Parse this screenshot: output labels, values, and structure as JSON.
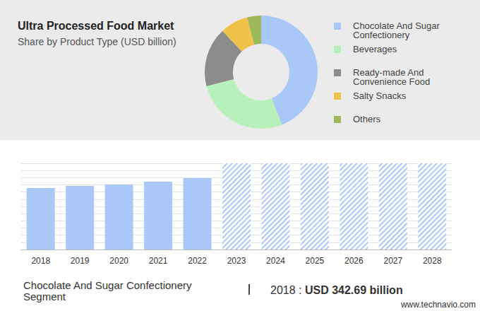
{
  "title": "Ultra Processed Food Market",
  "subtitle": "Share by Product Type (USD billion)",
  "chart_data": [
    {
      "type": "pie",
      "categories": [
        "Chocolate And Sugar Confectionery",
        "Beverages",
        "Ready-made And Convenience Food",
        "Salty Snacks",
        "Others"
      ],
      "values": [
        44,
        27,
        17,
        8,
        4
      ],
      "colors": [
        "#a9c8f8",
        "#b8f0bc",
        "#8c8c8c",
        "#f0c24a",
        "#9cb85a"
      ],
      "legend": "right"
    },
    {
      "type": "bar",
      "categories": [
        "2018",
        "2019",
        "2020",
        "2021",
        "2022",
        "2023",
        "2024",
        "2025",
        "2026",
        "2027",
        "2028"
      ],
      "series": [
        {
          "color": "#a9c8f8",
          "values": [
            342.69,
            354,
            362,
            378,
            397,
            null,
            null,
            null,
            null,
            null,
            null
          ]
        },
        {
          "color": "#a9c8f8",
          "marker": "hatch",
          "values": [
            null,
            null,
            null,
            null,
            null,
            480,
            480,
            480,
            480,
            480,
            480
          ]
        }
      ],
      "ylim": [
        0,
        480
      ],
      "yticks": [
        0,
        40,
        80,
        120,
        160,
        200,
        240,
        280,
        320,
        360,
        400,
        440,
        480
      ],
      "grid": true,
      "tick_labels": "x"
    }
  ],
  "footer": {
    "segment": "Chocolate And Sugar Confectionery Segment",
    "year": "2018 :",
    "value_text": "USD 342.69 billion"
  },
  "source": "www.technavio.com"
}
